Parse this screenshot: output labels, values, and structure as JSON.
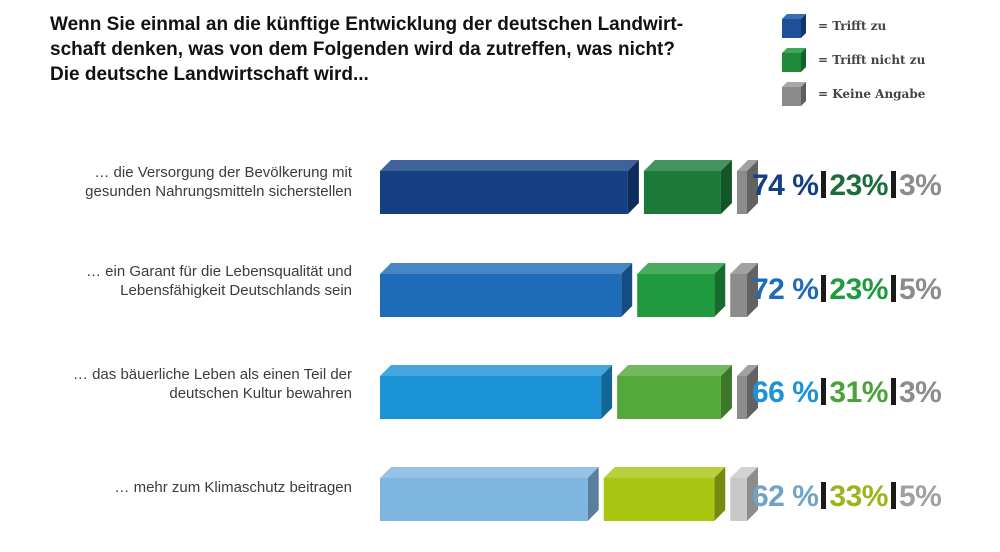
{
  "question": {
    "lines": [
      "Wenn Sie einmal an die künftige Entwicklung der deutschen Landwirt-",
      "schaft denken, was von dem Folgenden wird da zutreffen, was nicht?",
      "Die deutsche Landwirtschaft wird..."
    ]
  },
  "legend": [
    {
      "label": "= Trifft zu",
      "color": "#1f4f9a"
    },
    {
      "label": "= Trifft nicht zu",
      "color": "#1f8a3a"
    },
    {
      "label": "= Keine Angabe",
      "color": "#8a8a8a"
    }
  ],
  "chart_data": {
    "type": "bar",
    "stacked": true,
    "orientation": "horizontal",
    "categories": [
      "… die Versorgung der Bevölkerung mit gesunden Nahrungsmitteln sicherstellen",
      "… ein Garant für die Lebensqualität und Lebensfähigkeit Deutschlands sein",
      "… das bäuerliche Leben als einen Teil der deutschen Kultur bewahren",
      "… mehr zum Klimaschutz beitragen"
    ],
    "series": [
      {
        "name": "Trifft zu",
        "values": [
          74,
          72,
          66,
          62
        ]
      },
      {
        "name": "Trifft nicht zu",
        "values": [
          23,
          23,
          31,
          33
        ]
      },
      {
        "name": "Keine Angabe",
        "values": [
          3,
          5,
          3,
          5
        ]
      }
    ],
    "unit": "%"
  },
  "rows": [
    {
      "label_lines": [
        "… die Versorgung der Bevölkerung mit",
        "gesunden Nahrungsmitteln sicherstellen"
      ],
      "pct_labels": [
        "74 %",
        "23%",
        "3%"
      ],
      "colors": [
        "#143f82",
        "#1b7a3a",
        "#8c8c8c"
      ],
      "text_colors": [
        "#143f82",
        "#1b6e3a",
        "#8c8c8c"
      ]
    },
    {
      "label_lines": [
        "… ein Garant für die Lebensqualität und",
        "Lebensfähigkeit Deutschlands sein"
      ],
      "pct_labels": [
        "72 %",
        "23%",
        "5%"
      ],
      "colors": [
        "#1e6cb8",
        "#1f9a3f",
        "#8c8c8c"
      ],
      "text_colors": [
        "#1e6cb8",
        "#1f9a3f",
        "#8c8c8c"
      ]
    },
    {
      "label_lines": [
        "… das bäuerliche Leben als einen Teil der",
        "deutschen Kultur bewahren"
      ],
      "pct_labels": [
        "66 %",
        "31%",
        "3%"
      ],
      "colors": [
        "#1b93d6",
        "#55a93a",
        "#8c8c8c"
      ],
      "text_colors": [
        "#1b93d6",
        "#4aa23a",
        "#8c8c8c"
      ]
    },
    {
      "label_lines": [
        "… mehr zum Klimaschutz beitragen"
      ],
      "pct_labels": [
        "62 %",
        "33%",
        "5%"
      ],
      "colors": [
        "#7fb6df",
        "#a9c612",
        "#c8c8c8"
      ],
      "text_colors": [
        "#6fa3c8",
        "#9ab51b",
        "#a0a0a0"
      ]
    }
  ]
}
